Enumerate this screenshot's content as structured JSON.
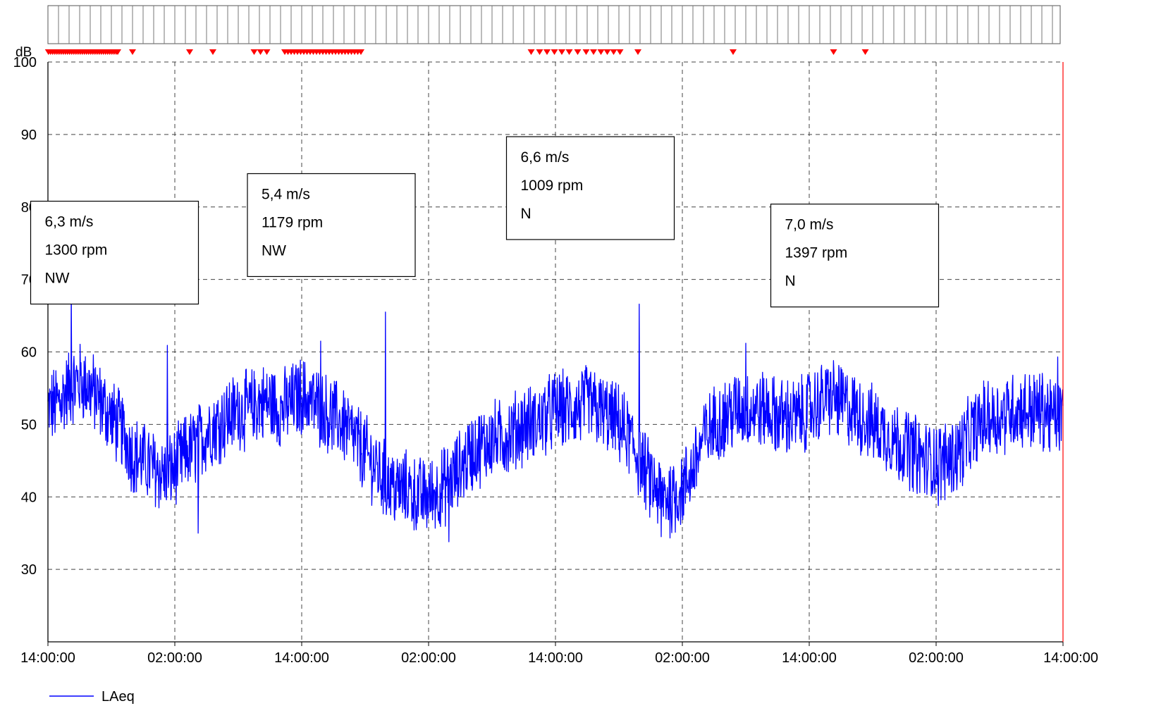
{
  "chart_data": {
    "type": "line",
    "ylabel": "dB",
    "ylim": [
      20,
      100
    ],
    "yticks": [
      30,
      40,
      50,
      60,
      70,
      80,
      90,
      100
    ],
    "xlim_hours": [
      0,
      96
    ],
    "xtick_labels": [
      "14:00:00",
      "02:00:00",
      "14:00:00",
      "02:00:00",
      "14:00:00",
      "02:00:00",
      "14:00:00",
      "02:00:00",
      "14:00:00"
    ],
    "grid": true,
    "legend_position": "bottom-left",
    "series": [
      {
        "name": "LAeq",
        "color": "#0000ff",
        "profile_hours": [
          0,
          1,
          2,
          3,
          4,
          5,
          6,
          7,
          8,
          9,
          10,
          11,
          12,
          13,
          14,
          15,
          16,
          17,
          18,
          19,
          20,
          21,
          22,
          23,
          24,
          25,
          26,
          27,
          28,
          29,
          30,
          31,
          32,
          33,
          34,
          35,
          36,
          37,
          38,
          39,
          40,
          41,
          42,
          43,
          44,
          45,
          46,
          47,
          48,
          49,
          50,
          51,
          52,
          53,
          54,
          55,
          56,
          57,
          58,
          59,
          60,
          61,
          62,
          63,
          64,
          65,
          66,
          67,
          68,
          69,
          70,
          71,
          72,
          73,
          74,
          75,
          76,
          77,
          78,
          79,
          80,
          81,
          82,
          83,
          84,
          85,
          86,
          87,
          88,
          89,
          90,
          91,
          92,
          93,
          94,
          95,
          96
        ],
        "profile_mean": [
          52,
          53,
          55,
          56,
          55,
          53,
          51,
          49,
          46,
          45,
          44,
          43,
          44,
          46,
          47,
          49,
          50,
          51,
          52,
          52,
          53,
          53,
          52,
          53,
          54,
          53,
          52,
          51,
          50,
          48,
          46,
          44,
          42,
          41,
          41,
          40,
          40,
          41,
          42,
          44,
          46,
          47,
          48,
          48,
          49,
          50,
          50,
          51,
          52,
          52,
          52,
          53,
          52,
          51,
          50,
          48,
          45,
          42,
          40,
          40,
          41,
          44,
          48,
          50,
          51,
          52,
          52,
          52,
          52,
          51,
          51,
          51,
          52,
          53,
          54,
          53,
          52,
          51,
          50,
          49,
          48,
          47,
          46,
          45,
          45,
          45,
          46,
          48,
          50,
          51,
          51,
          52,
          52,
          52,
          52,
          51,
          51
        ],
        "spikes": [
          {
            "hour": 2.2,
            "value": 68.8
          },
          {
            "hour": 11.3,
            "value": 60.9
          },
          {
            "hour": 14.2,
            "value": 35.0
          },
          {
            "hour": 25.8,
            "value": 61.5
          },
          {
            "hour": 31.9,
            "value": 65.5
          },
          {
            "hour": 37.9,
            "value": 33.8
          },
          {
            "hour": 55.9,
            "value": 66.6
          },
          {
            "hour": 58.0,
            "value": 34.5
          },
          {
            "hour": 66.0,
            "value": 61.2
          },
          {
            "hour": 84.2,
            "value": 38.8
          },
          {
            "hour": 95.5,
            "value": 59.3
          }
        ],
        "noise_amplitude": 5
      }
    ],
    "event_marker_color": "#ff0000",
    "event_marker_hours": [
      0.05,
      0.25,
      0.45,
      0.65,
      0.85,
      1.05,
      1.25,
      1.45,
      1.65,
      1.85,
      2.05,
      2.25,
      2.45,
      2.65,
      2.85,
      3.05,
      3.25,
      3.45,
      3.65,
      3.85,
      4.05,
      4.25,
      4.45,
      4.65,
      4.85,
      5.05,
      5.25,
      5.45,
      5.65,
      5.85,
      6.05,
      6.25,
      6.45,
      6.6,
      8.0,
      13.4,
      15.6,
      19.5,
      20.1,
      20.7,
      22.4,
      22.7,
      23.0,
      23.3,
      23.6,
      23.9,
      24.2,
      24.5,
      24.8,
      25.1,
      25.4,
      25.7,
      26.0,
      26.3,
      26.6,
      26.9,
      27.2,
      27.5,
      27.8,
      28.1,
      28.4,
      28.7,
      29.0,
      29.3,
      29.6,
      45.7,
      46.5,
      47.2,
      47.9,
      48.6,
      49.3,
      50.1,
      50.9,
      51.6,
      52.3,
      52.9,
      53.5,
      54.1,
      55.8,
      64.8,
      74.3,
      77.3
    ],
    "annotations": [
      {
        "lines": [
          "6,3 m/s",
          "1300 rpm",
          "NW"
        ],
        "hour": 6.3,
        "value": 73.7
      },
      {
        "lines": [
          "5,4 m/s",
          "1179 rpm",
          "NW"
        ],
        "hour": 26.8,
        "value": 77.5
      },
      {
        "lines": [
          "6,6 m/s",
          "1009 rpm",
          "N"
        ],
        "hour": 51.3,
        "value": 82.6
      },
      {
        "lines": [
          "7,0 m/s",
          "1397 rpm",
          "N"
        ],
        "hour": 76.3,
        "value": 73.3
      }
    ]
  }
}
